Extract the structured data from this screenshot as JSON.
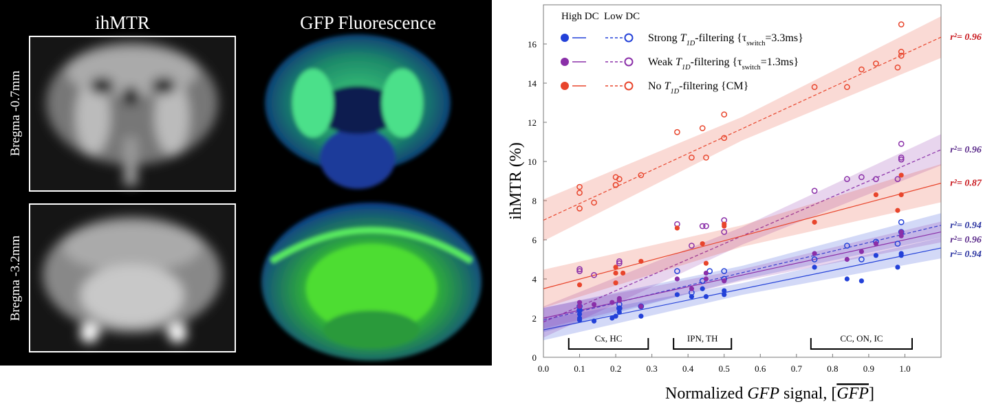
{
  "figure": {
    "columns": [
      "ihMTR",
      "GFP Fluorescence"
    ],
    "rows": [
      "Bregma -0.7mm",
      "Bregma -3.2mm"
    ]
  },
  "chart_data": {
    "type": "scatter",
    "y_label": "ihMTR (%)",
    "x_label": [
      {
        "text": "Normalized "
      },
      {
        "text": "GFP",
        "style": "italic"
      },
      {
        "text": " signal, ["
      },
      {
        "text": "GFP",
        "style": "italic-overline"
      },
      {
        "text": "]"
      }
    ],
    "xlim": [
      0,
      1.1
    ],
    "xticks": [
      {
        "value": 0,
        "label": "0.0"
      },
      0.1,
      0.2,
      0.3,
      0.4,
      0.5,
      0.6,
      0.7,
      0.8,
      0.9,
      {
        "value": 1,
        "label": "1.0"
      }
    ],
    "ylim": [
      0,
      18
    ],
    "yticks": [
      0,
      2,
      4,
      6,
      8,
      10,
      12,
      14,
      16
    ],
    "legend_headers": [
      "High DC",
      "Low DC"
    ],
    "r2_prefix": "r²= ",
    "groups": [
      {
        "label": [
          {
            "text": "Strong "
          },
          {
            "text": "T",
            "style": "italic"
          },
          {
            "text": "1D",
            "style": "italic-sub"
          },
          {
            "text": "-filtering {τ"
          },
          {
            "text": "switch",
            "style": "sub"
          },
          {
            "text": "=3.3ms}"
          }
        ],
        "color": "#2341d8",
        "label_color": "#2a33a0",
        "high_dc": {
          "x": [
            0.1,
            0.1,
            0.1,
            0.1,
            0.14,
            0.19,
            0.2,
            0.21,
            0.21,
            0.27,
            0.37,
            0.41,
            0.44,
            0.45,
            0.5,
            0.5,
            0.75,
            0.84,
            0.88,
            0.92,
            0.98,
            0.99,
            0.99
          ],
          "y": [
            1.9,
            2.0,
            2.2,
            2.4,
            1.85,
            2.0,
            2.1,
            2.3,
            2.5,
            2.1,
            3.2,
            3.1,
            3.5,
            3.1,
            3.2,
            3.4,
            4.6,
            4.0,
            3.9,
            5.2,
            4.6,
            5.2,
            5.3
          ],
          "fit": {
            "intercept": 1.4,
            "slope": 3.8,
            "band": 0.3
          },
          "r2": 0.94
        },
        "low_dc": {
          "x": [
            0.1,
            0.1,
            0.21,
            0.21,
            0.27,
            0.37,
            0.41,
            0.44,
            0.46,
            0.5,
            0.5,
            0.75,
            0.84,
            0.88,
            0.92,
            0.98,
            0.99,
            0.99
          ],
          "y": [
            2.4,
            2.6,
            2.5,
            2.7,
            2.6,
            4.4,
            3.3,
            3.9,
            4.4,
            4.0,
            4.4,
            5.0,
            5.7,
            5.0,
            5.9,
            5.8,
            6.4,
            6.9
          ],
          "fit": {
            "intercept": 1.9,
            "slope": 4.4,
            "band": 0.35
          },
          "r2": 0.94
        }
      },
      {
        "label": [
          {
            "text": "Weak "
          },
          {
            "text": "T",
            "style": "italic"
          },
          {
            "text": "1D",
            "style": "italic-sub"
          },
          {
            "text": "-filtering {τ"
          },
          {
            "text": "switch",
            "style": "sub"
          },
          {
            "text": "=1.3ms}"
          }
        ],
        "color": "#8a2fa8",
        "label_color": "#5a2a8a",
        "high_dc": {
          "x": [
            0.1,
            0.1,
            0.14,
            0.19,
            0.21,
            0.21,
            0.27,
            0.37,
            0.41,
            0.45,
            0.45,
            0.5,
            0.75,
            0.84,
            0.88,
            0.92,
            0.99,
            0.99
          ],
          "y": [
            2.6,
            2.8,
            2.7,
            2.8,
            2.9,
            3.0,
            2.6,
            4.0,
            3.5,
            4.3,
            4.0,
            3.9,
            5.3,
            5.0,
            5.4,
            5.8,
            6.2,
            6.4
          ],
          "fit": {
            "intercept": 2.0,
            "slope": 4.0,
            "band": 0.3
          },
          "r2": 0.96
        },
        "low_dc": {
          "x": [
            0.1,
            0.1,
            0.14,
            0.21,
            0.21,
            0.37,
            0.41,
            0.44,
            0.45,
            0.5,
            0.5,
            0.75,
            0.84,
            0.88,
            0.92,
            0.98,
            0.99,
            0.99,
            0.99
          ],
          "y": [
            4.4,
            4.5,
            4.2,
            4.8,
            4.9,
            6.8,
            5.7,
            6.7,
            6.7,
            7.0,
            6.4,
            8.5,
            9.1,
            9.2,
            9.1,
            9.1,
            10.9,
            10.2,
            10.1
          ],
          "fit": {
            "intercept": 1.8,
            "slope": 8.0,
            "band": 0.45
          },
          "r2": 0.96
        }
      },
      {
        "label": [
          {
            "text": "No "
          },
          {
            "text": "T",
            "style": "italic"
          },
          {
            "text": "1D",
            "style": "italic-sub"
          },
          {
            "text": "-filtering {CM}"
          }
        ],
        "color": "#e8452c",
        "label_color": "#c8161c",
        "high_dc": {
          "x": [
            0.1,
            0.2,
            0.2,
            0.2,
            0.22,
            0.27,
            0.37,
            0.44,
            0.45,
            0.5,
            0.5,
            0.75,
            0.92,
            0.98,
            0.99,
            0.99
          ],
          "y": [
            3.7,
            3.8,
            4.3,
            4.6,
            4.3,
            4.9,
            6.6,
            5.8,
            4.8,
            6.8,
            6.7,
            6.9,
            8.3,
            7.5,
            9.3,
            8.3
          ],
          "fit": {
            "intercept": 3.5,
            "slope": 4.9,
            "band": 0.55
          },
          "r2": 0.87
        },
        "low_dc": {
          "x": [
            0.1,
            0.1,
            0.1,
            0.14,
            0.2,
            0.2,
            0.2,
            0.21,
            0.27,
            0.37,
            0.41,
            0.44,
            0.45,
            0.5,
            0.5,
            0.75,
            0.84,
            0.88,
            0.92,
            0.98,
            0.99,
            0.99,
            0.99
          ],
          "y": [
            8.7,
            8.4,
            7.6,
            7.9,
            8.8,
            9.2,
            8.8,
            9.1,
            9.3,
            11.5,
            10.2,
            11.7,
            10.2,
            12.4,
            11.2,
            13.8,
            13.8,
            14.7,
            15.0,
            14.8,
            15.6,
            15.4,
            17.0
          ],
          "fit": {
            "intercept": 7.0,
            "slope": 8.5,
            "band": 0.6
          },
          "r2": 0.96
        }
      }
    ],
    "regions": [
      {
        "label": "Cx, HC",
        "x": [
          0.07,
          0.29
        ]
      },
      {
        "label": "IPN, TH",
        "x": [
          0.36,
          0.52
        ]
      },
      {
        "label": "CC, ON, IC",
        "x": [
          0.74,
          1.02
        ]
      }
    ]
  }
}
